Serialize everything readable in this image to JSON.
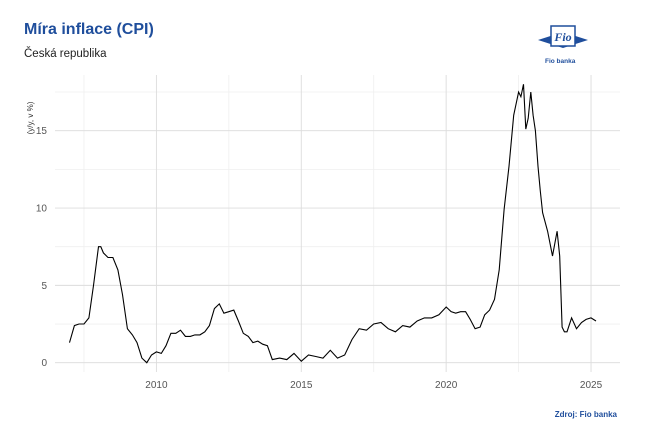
{
  "header": {
    "title": "Míra inflace (CPI)",
    "subtitle": "Česká republika"
  },
  "logo": {
    "name": "Fio",
    "caption": "Fio banka",
    "color": "#1f4e9c"
  },
  "source": "Zdroj: Fio banka",
  "chart_data": {
    "type": "line",
    "title": "Míra inflace (CPI)",
    "subtitle": "Česká republika",
    "xlabel": "",
    "ylabel": "(y/y, v %)",
    "xlim": [
      2006.5,
      2026.0
    ],
    "ylim": [
      -0.6,
      18.6
    ],
    "x_ticks": [
      2010,
      2015,
      2020,
      2025
    ],
    "y_ticks": [
      0,
      5,
      10,
      15
    ],
    "grid": true,
    "legend": "none",
    "line_color": "#000000",
    "series": [
      {
        "x": [
          2007.0,
          2007.17,
          2007.33,
          2007.5,
          2007.67,
          2007.83,
          2008.0,
          2008.08,
          2008.17,
          2008.33,
          2008.5,
          2008.67,
          2008.83,
          2009.0,
          2009.17,
          2009.33,
          2009.5,
          2009.67,
          2009.83,
          2010.0,
          2010.17,
          2010.33,
          2010.5,
          2010.67,
          2010.83,
          2011.0,
          2011.17,
          2011.33,
          2011.5,
          2011.67,
          2011.83,
          2012.0,
          2012.17,
          2012.33,
          2012.5,
          2012.67,
          2012.83,
          2013.0,
          2013.17,
          2013.33,
          2013.5,
          2013.67,
          2013.83,
          2014.0,
          2014.25,
          2014.5,
          2014.75,
          2015.0,
          2015.25,
          2015.5,
          2015.75,
          2016.0,
          2016.25,
          2016.5,
          2016.75,
          2017.0,
          2017.25,
          2017.5,
          2017.75,
          2018.0,
          2018.25,
          2018.5,
          2018.75,
          2019.0,
          2019.25,
          2019.5,
          2019.75,
          2020.0,
          2020.17,
          2020.33,
          2020.5,
          2020.67,
          2020.83,
          2021.0,
          2021.17,
          2021.33,
          2021.5,
          2021.67,
          2021.83,
          2022.0,
          2022.17,
          2022.33,
          2022.5,
          2022.58,
          2022.67,
          2022.75,
          2022.83,
          2022.92,
          2023.0,
          2023.08,
          2023.17,
          2023.25,
          2023.33,
          2023.5,
          2023.67,
          2023.83,
          2023.92,
          2024.0,
          2024.08,
          2024.17,
          2024.33,
          2024.5,
          2024.67,
          2024.83,
          2025.0,
          2025.17
        ],
        "y": [
          1.3,
          2.4,
          2.5,
          2.5,
          2.9,
          5.0,
          7.5,
          7.5,
          7.1,
          6.8,
          6.8,
          6.0,
          4.4,
          2.2,
          1.8,
          1.3,
          0.3,
          0.0,
          0.5,
          0.7,
          0.6,
          1.1,
          1.9,
          1.9,
          2.1,
          1.7,
          1.7,
          1.8,
          1.8,
          2.0,
          2.4,
          3.5,
          3.8,
          3.2,
          3.3,
          3.4,
          2.7,
          1.9,
          1.7,
          1.3,
          1.4,
          1.2,
          1.1,
          0.2,
          0.3,
          0.2,
          0.6,
          0.1,
          0.5,
          0.4,
          0.3,
          0.8,
          0.3,
          0.5,
          1.5,
          2.2,
          2.1,
          2.5,
          2.6,
          2.2,
          2.0,
          2.4,
          2.3,
          2.7,
          2.9,
          2.9,
          3.1,
          3.6,
          3.3,
          3.2,
          3.3,
          3.3,
          2.8,
          2.2,
          2.3,
          3.1,
          3.4,
          4.1,
          6.0,
          9.9,
          12.7,
          16.0,
          17.5,
          17.2,
          18.0,
          15.1,
          15.8,
          17.5,
          16.0,
          15.0,
          12.7,
          11.1,
          9.7,
          8.5,
          6.9,
          8.5,
          6.9,
          2.3,
          2.0,
          2.0,
          2.9,
          2.2,
          2.6,
          2.8,
          2.9,
          2.7
        ]
      }
    ]
  }
}
